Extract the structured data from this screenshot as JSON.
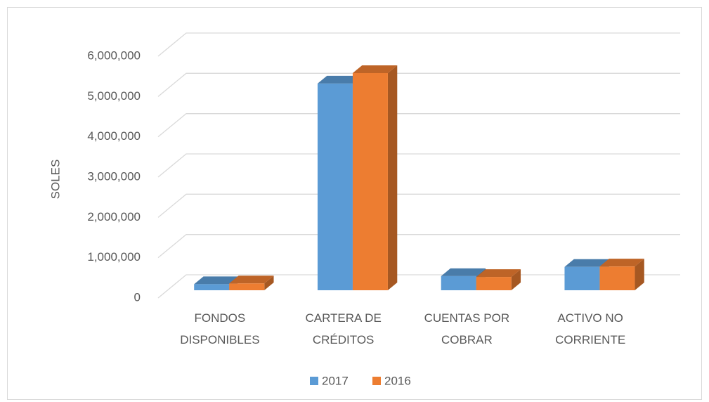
{
  "chart_data": {
    "type": "bar3d",
    "y_label": "SOLES",
    "categories": [
      "FONDOS DISPONIBLES",
      "CARTERA DE CRÉDITOS",
      "CUENTAS POR COBRAR",
      "ACTIVO NO CORRIENTE"
    ],
    "series": [
      {
        "name": "2017",
        "color": "#5b9bd5",
        "values": [
          150000,
          5130000,
          350000,
          580000
        ]
      },
      {
        "name": "2016",
        "color": "#ed7d31",
        "values": [
          170000,
          5390000,
          330000,
          590000
        ]
      }
    ],
    "ylim": [
      0,
      6000000
    ],
    "yticks": [
      0,
      {
        "value": 1000000,
        "label": "1,000,000"
      },
      {
        "value": 2000000,
        "label": "2,000,000"
      },
      {
        "value": 3000000,
        "label": "3,000,000"
      },
      {
        "value": 4000000,
        "label": "4,000,000"
      },
      {
        "value": 5000000,
        "label": "5,000,000"
      },
      {
        "value": 6000000,
        "label": "6,000,000"
      }
    ],
    "grid": true,
    "legend": "bottom"
  }
}
